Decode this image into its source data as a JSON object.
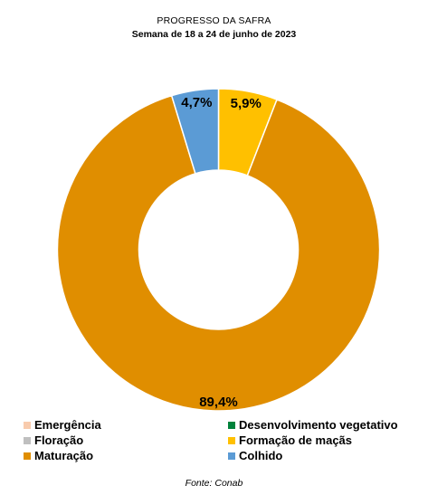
{
  "chart_data": {
    "type": "pie",
    "title": "PROGRESSO DA SAFRA",
    "subtitle": "Semana de 18 a 24 de junho de 2023",
    "source": "Fonte: Conab",
    "donut": true,
    "slices": [
      {
        "name": "Formação de maçãs",
        "value": 5.9,
        "label": "5,9%",
        "color": "#FFC000"
      },
      {
        "name": "Maturação",
        "value": 89.4,
        "label": "89,4%",
        "color": "#E08E00"
      },
      {
        "name": "Colhido",
        "value": 4.7,
        "label": "4,7%",
        "color": "#5B9BD5"
      }
    ],
    "legend": [
      {
        "name": "Emergência",
        "color": "#F8CBAD"
      },
      {
        "name": "Desenvolvimento vegetativo",
        "color": "#00823B"
      },
      {
        "name": "Floração",
        "color": "#BFBFBF"
      },
      {
        "name": "Formação de maçãs",
        "color": "#FFC000"
      },
      {
        "name": "Maturação",
        "color": "#E08E00"
      },
      {
        "name": "Colhido",
        "color": "#5B9BD5"
      }
    ],
    "legend_position": "bottom"
  }
}
